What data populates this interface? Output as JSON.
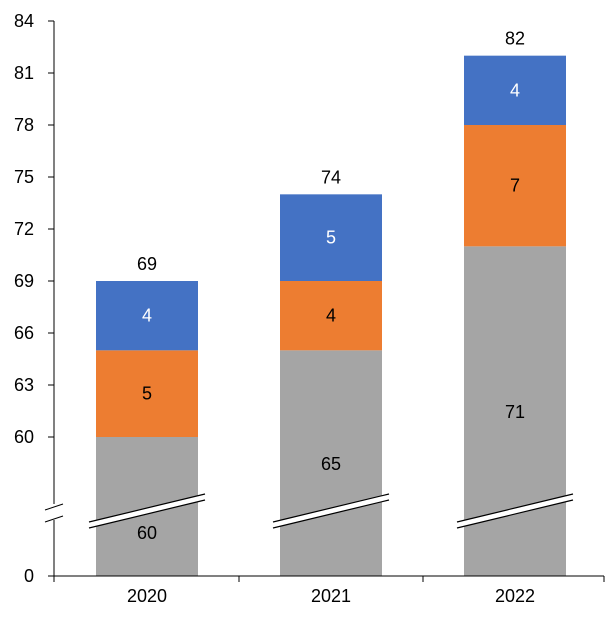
{
  "chart_data": {
    "type": "bar",
    "stacked": true,
    "broken_axis": true,
    "categories": [
      "2020",
      "2021",
      "2022"
    ],
    "series": [
      {
        "values": [
          60,
          65,
          71
        ],
        "color": "#a5a5a5",
        "label_color": "#000000"
      },
      {
        "values": [
          5,
          4,
          7
        ],
        "color": "#ed7d31",
        "label_color": "#000000"
      },
      {
        "values": [
          4,
          5,
          4
        ],
        "color": "#4472c4",
        "label_color": "#ffffff"
      }
    ],
    "totals": [
      "69",
      "74",
      "82"
    ],
    "bottom_labels": [
      "60",
      "65",
      "71"
    ],
    "segment_labels": [
      [
        "60",
        "5",
        "4"
      ],
      [
        "65",
        "4",
        "5"
      ],
      [
        "71",
        "7",
        "4"
      ]
    ],
    "y_ticks": [
      "84",
      "81",
      "78",
      "75",
      "72",
      "69",
      "66",
      "63",
      "60",
      "0"
    ],
    "ylim_upper": [
      60,
      84
    ],
    "ylim_lower": 0,
    "grid": false
  }
}
